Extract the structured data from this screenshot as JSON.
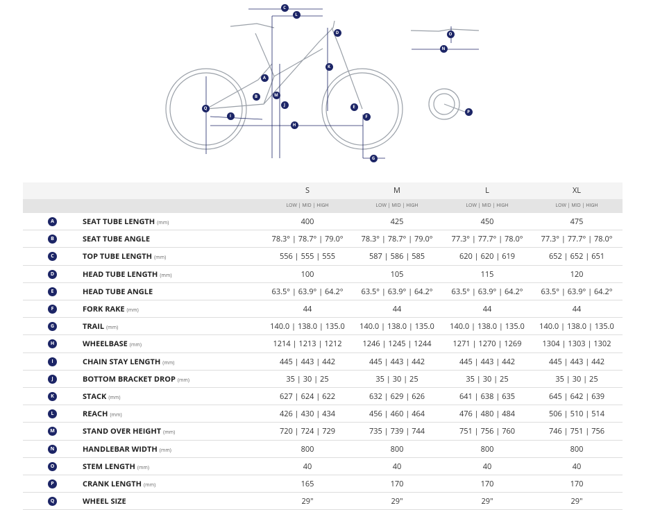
{
  "diagram": {
    "labels": [
      {
        "letter": "C"
      },
      {
        "letter": "L"
      },
      {
        "letter": "D"
      },
      {
        "letter": "K"
      },
      {
        "letter": "A"
      },
      {
        "letter": "B"
      },
      {
        "letter": "M"
      },
      {
        "letter": "J"
      },
      {
        "letter": "Q"
      },
      {
        "letter": "I"
      },
      {
        "letter": "H"
      },
      {
        "letter": "E"
      },
      {
        "letter": "F"
      },
      {
        "letter": "G"
      },
      {
        "letter": "O"
      },
      {
        "letter": "N"
      },
      {
        "letter": "P"
      }
    ]
  },
  "table": {
    "sizes": [
      "S",
      "M",
      "L",
      "XL"
    ],
    "subheader": "LOW | MID | HIGH",
    "rows": [
      {
        "letter": "A",
        "name": "SEAT TUBE LENGTH",
        "unit": "(mm)",
        "cells": [
          "400",
          "425",
          "450",
          "475"
        ]
      },
      {
        "letter": "B",
        "name": "SEAT TUBE ANGLE",
        "cells": [
          "78.3° | 78.7° | 79.0°",
          "78.3° | 78.7° | 79.0°",
          "77.3° | 77.7° | 78.0°",
          "77.3° | 77.7° | 78.0°"
        ]
      },
      {
        "letter": "C",
        "name": "TOP TUBE LENGTH",
        "unit": "(mm)",
        "cells": [
          "556 | 555 | 555",
          "587 | 586 | 585",
          "620 | 620 | 619",
          "652 | 652 | 651"
        ]
      },
      {
        "letter": "D",
        "name": "HEAD TUBE LENGTH",
        "unit": "(mm)",
        "cells": [
          "100",
          "105",
          "115",
          "120"
        ]
      },
      {
        "letter": "E",
        "name": "HEAD TUBE ANGLE",
        "cells": [
          "63.5° | 63.9° | 64.2°",
          "63.5° | 63.9° | 64.2°",
          "63.5° | 63.9° | 64.2°",
          "63.5° | 63.9° | 64.2°"
        ]
      },
      {
        "letter": "F",
        "name": "FORK RAKE",
        "unit": "(mm)",
        "cells": [
          "44",
          "44",
          "44",
          "44"
        ]
      },
      {
        "letter": "G",
        "name": "TRAIL",
        "unit": "(mm)",
        "cells": [
          "140.0 | 138.0 | 135.0",
          "140.0 | 138.0 | 135.0",
          "140.0 | 138.0 | 135.0",
          "140.0 | 138.0 | 135.0"
        ]
      },
      {
        "letter": "H",
        "name": "WHEELBASE",
        "unit": "(mm)",
        "cells": [
          "1214 | 1213 | 1212",
          "1246 | 1245 | 1244",
          "1271 | 1270 | 1269",
          "1304 | 1303 | 1302"
        ]
      },
      {
        "letter": "I",
        "name": "CHAIN STAY LENGTH",
        "unit": "(mm)",
        "cells": [
          "445 | 443 | 442",
          "445 | 443 | 442",
          "445 | 443 | 442",
          "445 | 443 | 442"
        ]
      },
      {
        "letter": "J",
        "name": "BOTTOM BRACKET DROP",
        "unit": "(mm)",
        "cells": [
          "35 | 30 | 25",
          "35 | 30 | 25",
          "35 | 30 | 25",
          "35 | 30 | 25"
        ]
      },
      {
        "letter": "K",
        "name": "STACK",
        "unit": "(mm)",
        "cells": [
          "627 | 624 | 622",
          "632 | 629 | 626",
          "641 | 638 | 635",
          "645 | 642 | 639"
        ]
      },
      {
        "letter": "L",
        "name": "REACH",
        "unit": "(mm)",
        "cells": [
          "426 | 430 | 434",
          "456 | 460 | 464",
          "476 | 480 | 484",
          "506 | 510 | 514"
        ]
      },
      {
        "letter": "M",
        "name": "STAND OVER HEIGHT",
        "unit": "(mm)",
        "cells": [
          "720 | 724 | 729",
          "735 | 739 | 744",
          "751 | 756 | 760",
          "746 | 751 | 756"
        ]
      },
      {
        "letter": "N",
        "name": "HANDLEBAR WIDTH",
        "unit": "(mm)",
        "cells": [
          "800",
          "800",
          "800",
          "800"
        ]
      },
      {
        "letter": "O",
        "name": "STEM LENGTH",
        "unit": "(mm)",
        "cells": [
          "40",
          "40",
          "40",
          "40"
        ]
      },
      {
        "letter": "P",
        "name": "CRANK LENGTH",
        "unit": "(mm)",
        "cells": [
          "165",
          "170",
          "170",
          "170"
        ]
      },
      {
        "letter": "Q",
        "name": "WHEEL SIZE",
        "cells": [
          "29\"",
          "29\"",
          "29\"",
          "29\""
        ]
      }
    ]
  }
}
